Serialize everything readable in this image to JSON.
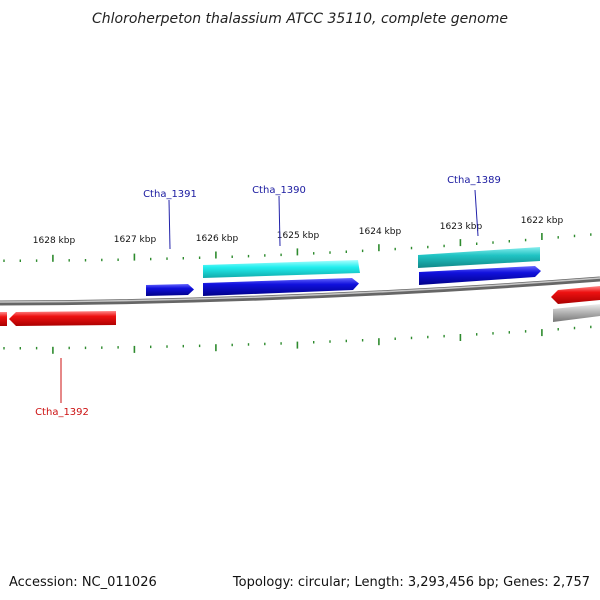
{
  "title": "Chloroherpeton thalassium ATCC 35110, complete genome",
  "footer": {
    "accession": "Accession: NC_011026",
    "topology": "Topology: circular; Length: 3,293,456 bp; Genes: 2,757"
  },
  "colors": {
    "tick": "#2e8b2e",
    "backbone": "#8c8c8c",
    "gene_red": "#ee1111",
    "gene_blue": "#1111dd",
    "gene_cyan": "#22eeee",
    "gene_teal": "#20c4c4",
    "gene_gray": "#bbbbbb",
    "label_blue": "#1a1aa0",
    "label_red": "#cc1111"
  },
  "kbp_labels": [
    "1628 kbp",
    "1627 kbp",
    "1626 kbp",
    "1625 kbp",
    "1624 kbp",
    "1623 kbp",
    "1622 kbp"
  ],
  "gene_labels": {
    "g1391": "Ctha_1391",
    "g1390": "Ctha_1390",
    "g1389": "Ctha_1389",
    "g1392": "Ctha_1392"
  }
}
